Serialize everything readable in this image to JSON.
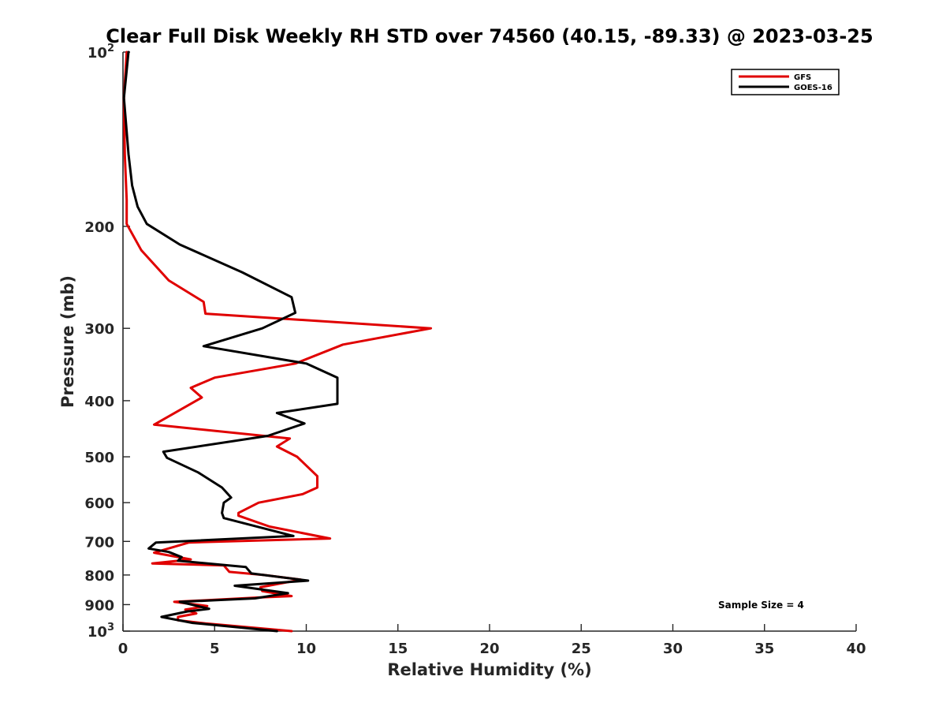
{
  "chart_data": {
    "type": "line",
    "title": "Clear Full Disk Weekly RH STD over 74560 (40.15, -89.33) @ 2023-03-25",
    "xlabel": "Relative Humidity (%)",
    "ylabel": "Pressure (mb)",
    "xlim": [
      0,
      40
    ],
    "ylim": [
      100,
      1000
    ],
    "y_scale": "log",
    "y_reversed": true,
    "x_ticks": [
      "0",
      "5",
      "10",
      "15",
      "20",
      "25",
      "30",
      "35",
      "40"
    ],
    "y_ticks": [
      {
        "value": 100,
        "base": "10",
        "exp": "2"
      },
      {
        "value": 200,
        "label": "200"
      },
      {
        "value": 300,
        "label": "300"
      },
      {
        "value": 400,
        "label": "400"
      },
      {
        "value": 500,
        "label": "500"
      },
      {
        "value": 600,
        "label": "600"
      },
      {
        "value": 700,
        "label": "700"
      },
      {
        "value": 800,
        "label": "800"
      },
      {
        "value": 900,
        "label": "900"
      },
      {
        "value": 1000,
        "base": "10",
        "exp": "3"
      }
    ],
    "legend_position": "top-right",
    "annotation": "Sample Size = 4",
    "series": [
      {
        "name": "GFS",
        "color": "#e00000",
        "points": [
          [
            0.2,
            100
          ],
          [
            0.05,
            120
          ],
          [
            0.1,
            150
          ],
          [
            0.2,
            180
          ],
          [
            0.2,
            198
          ],
          [
            1.0,
            220
          ],
          [
            2.5,
            248
          ],
          [
            4.4,
            270
          ],
          [
            4.5,
            283
          ],
          [
            16.8,
            300
          ],
          [
            12.0,
            320
          ],
          [
            9.4,
            345
          ],
          [
            5.0,
            365
          ],
          [
            3.7,
            380
          ],
          [
            4.3,
            395
          ],
          [
            1.7,
            440
          ],
          [
            9.1,
            465
          ],
          [
            8.4,
            480
          ],
          [
            9.5,
            500
          ],
          [
            10.6,
            540
          ],
          [
            10.6,
            565
          ],
          [
            9.8,
            580
          ],
          [
            7.4,
            600
          ],
          [
            6.3,
            625
          ],
          [
            6.3,
            632
          ],
          [
            8.0,
            660
          ],
          [
            11.3,
            692
          ],
          [
            3.6,
            703
          ],
          [
            1.7,
            732
          ],
          [
            3.7,
            752
          ],
          [
            1.6,
            764
          ],
          [
            5.5,
            770
          ],
          [
            5.8,
            790
          ],
          [
            7.7,
            800
          ],
          [
            9.7,
            815
          ],
          [
            7.5,
            840
          ],
          [
            7.6,
            853
          ],
          [
            9.2,
            870
          ],
          [
            7.4,
            875
          ],
          [
            2.8,
            890
          ],
          [
            4.6,
            905
          ],
          [
            3.4,
            918
          ],
          [
            4.0,
            932
          ],
          [
            3.0,
            945
          ],
          [
            3.0,
            958
          ],
          [
            4.5,
            970
          ],
          [
            9.2,
            1000
          ]
        ]
      },
      {
        "name": "GOES-16",
        "color": "#000000",
        "points": [
          [
            0.3,
            100
          ],
          [
            0.05,
            120
          ],
          [
            0.3,
            150
          ],
          [
            0.5,
            170
          ],
          [
            0.8,
            185
          ],
          [
            1.3,
            198
          ],
          [
            3.1,
            215
          ],
          [
            6.5,
            240
          ],
          [
            9.2,
            265
          ],
          [
            9.4,
            282
          ],
          [
            7.6,
            300
          ],
          [
            4.4,
            322
          ],
          [
            10.0,
            345
          ],
          [
            11.7,
            365
          ],
          [
            11.7,
            385
          ],
          [
            11.7,
            405
          ],
          [
            8.4,
            420
          ],
          [
            9.9,
            438
          ],
          [
            7.9,
            460
          ],
          [
            2.2,
            490
          ],
          [
            2.4,
            502
          ],
          [
            4.1,
            532
          ],
          [
            5.4,
            565
          ],
          [
            5.9,
            588
          ],
          [
            5.5,
            600
          ],
          [
            5.4,
            625
          ],
          [
            5.5,
            638
          ],
          [
            9.3,
            685
          ],
          [
            1.8,
            703
          ],
          [
            1.4,
            720
          ],
          [
            2.5,
            730
          ],
          [
            3.2,
            745
          ],
          [
            3.0,
            756
          ],
          [
            6.7,
            775
          ],
          [
            7.0,
            795
          ],
          [
            10.1,
            818
          ],
          [
            6.1,
            835
          ],
          [
            9.0,
            860
          ],
          [
            7.2,
            878
          ],
          [
            3.1,
            890
          ],
          [
            4.7,
            915
          ],
          [
            3.5,
            925
          ],
          [
            2.1,
            945
          ],
          [
            3.8,
            968
          ],
          [
            8.4,
            1000
          ]
        ]
      }
    ]
  }
}
